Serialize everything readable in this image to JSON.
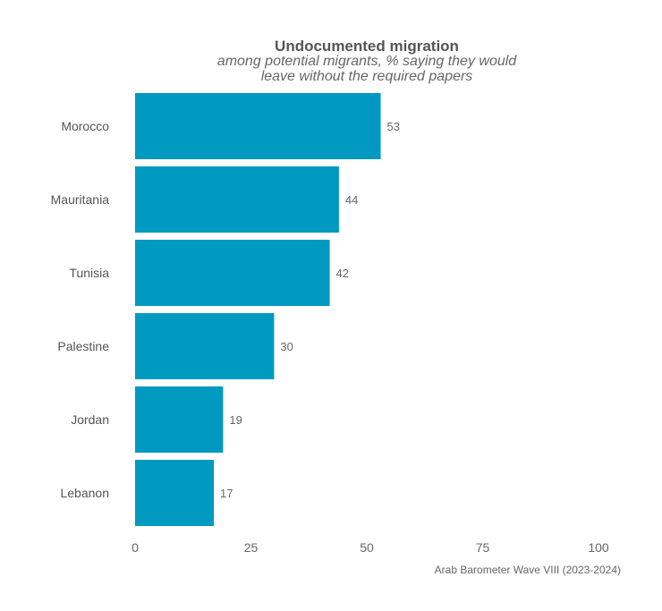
{
  "chart_data": {
    "type": "bar",
    "orientation": "horizontal",
    "title": "Undocumented migration",
    "subtitle_lines": [
      "among potential migrants, % saying they would",
      "leave without the required papers"
    ],
    "categories": [
      "Morocco",
      "Mauritania",
      "Tunisia",
      "Palestine",
      "Jordan",
      "Lebanon"
    ],
    "values": [
      53,
      44,
      42,
      30,
      19,
      17
    ],
    "xlim": [
      0,
      100
    ],
    "xticks": [
      0,
      25,
      50,
      75,
      100
    ],
    "xlabel": "",
    "ylabel": "",
    "grid": false,
    "bar_color": "#0099bf",
    "caption": "Arab Barometer Wave VIII (2023-2024)"
  }
}
